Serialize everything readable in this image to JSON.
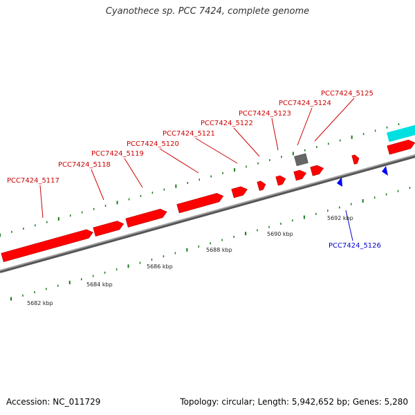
{
  "title": "Cyanothece sp. PCC 7424, complete genome",
  "footer": {
    "accession": "Accession: NC_011729",
    "stats": "Topology: circular; Length: 5,942,652 bp; Genes: 5,280"
  },
  "colors": {
    "forward_gene": "#ff0000",
    "reverse_gene": "#0000ff",
    "rna_gene": "#00e0e0",
    "other_feature": "#666666",
    "backbone": "#808080",
    "tick": "#1a7a1a",
    "label_forward": "#cc0000",
    "label_reverse": "#0000cc"
  },
  "forward_labels": [
    "PCC7424_5117",
    "PCC7424_5118",
    "PCC7424_5119",
    "PCC7424_5120",
    "PCC7424_5121",
    "PCC7424_5122",
    "PCC7424_5123",
    "PCC7424_5124",
    "PCC7424_5125"
  ],
  "reverse_labels": [
    "PCC7424_5126"
  ],
  "kbp_labels": [
    "5682 kbp",
    "5684 kbp",
    "5686 kbp",
    "5688 kbp",
    "5690 kbp",
    "5692 kbp"
  ]
}
